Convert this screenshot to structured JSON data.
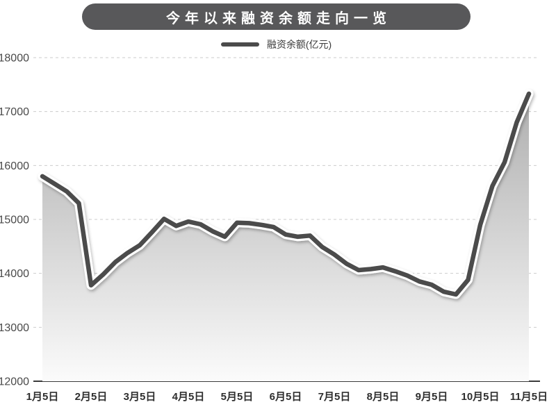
{
  "title": "今年以来融资余额走向一览",
  "legend": {
    "label": "融资余额(亿元)"
  },
  "colors": {
    "pill_bg": "#58585a",
    "title_text": "#ffffff",
    "legend_text": "#3b3b3b",
    "line": "#4b4b4b",
    "line_casing": "#ffffff",
    "area_top": "#aeaeae",
    "area_bottom": "#fbfbfb",
    "grid": "#cbcbcb",
    "axis": "#3a3a3a",
    "y_label": "#4a4a4a",
    "x_label": "#2e2e2e"
  },
  "chart_data": {
    "type": "line",
    "title": "今年以来融资余额走向一览",
    "x_tick_labels": [
      "1月5日",
      "2月5日",
      "3月5日",
      "4月5日",
      "5月5日",
      "6月5日",
      "7月5日",
      "8月5日",
      "9月5日",
      "10月5日",
      "11月5日"
    ],
    "points_per_tick_interval": 4,
    "y_ticks": [
      18000,
      17000,
      16000,
      15000,
      14000,
      13000,
      12000
    ],
    "ylim": [
      12000,
      18000
    ],
    "grid": "horizontal-dashed",
    "legend_position": "top-center",
    "series": [
      {
        "name": "融资余额(亿元)",
        "values": [
          15800,
          15660,
          15520,
          15300,
          13780,
          13980,
          14210,
          14380,
          14520,
          14760,
          15010,
          14880,
          14960,
          14910,
          14780,
          14680,
          14940,
          14930,
          14900,
          14860,
          14720,
          14680,
          14700,
          14490,
          14350,
          14180,
          14060,
          14080,
          14110,
          14040,
          13960,
          13850,
          13790,
          13660,
          13610,
          13880,
          14900,
          15620,
          16060,
          16800,
          17330
        ]
      }
    ]
  }
}
